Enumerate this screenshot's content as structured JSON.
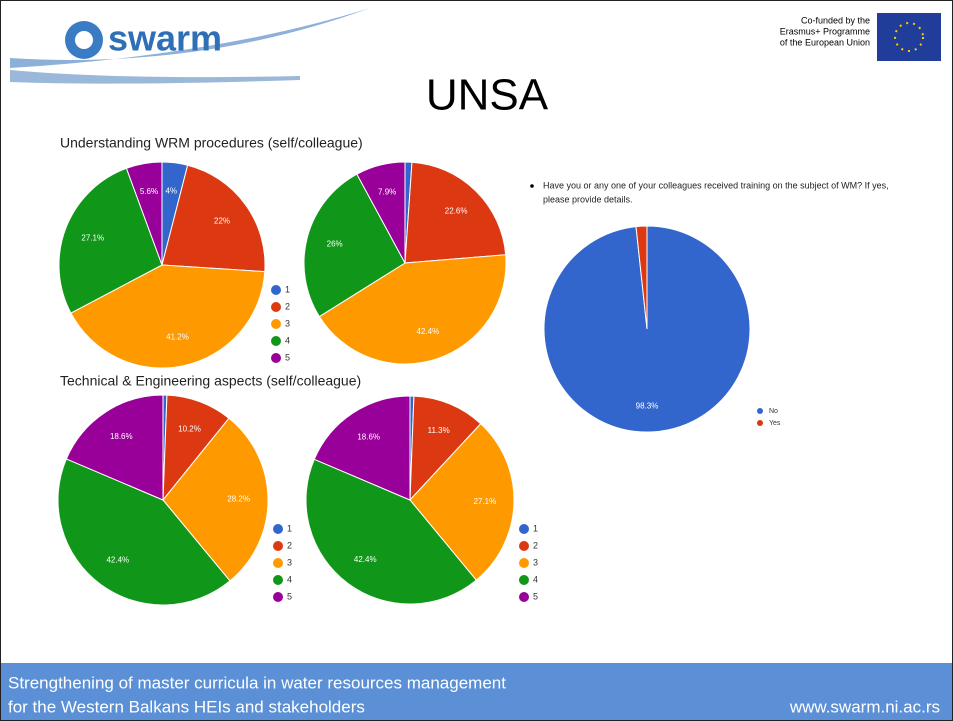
{
  "slide": {
    "logo": "swarm",
    "cofunded": [
      "Co-funded by the",
      "Erasmus+ Programme",
      "of the European Union"
    ],
    "title": "UNSA",
    "footer": [
      "Strengthening of master curricula in water resources  management",
      "for the Western Balkans HEIs and stakeholders"
    ],
    "url": "www.swarm.ni.ac.rs"
  },
  "chart_data": [
    {
      "type": "pie",
      "title": "Understanding WRM procedures (self/colleague)",
      "categories": [
        "1",
        "2",
        "3",
        "4",
        "5"
      ],
      "values": [
        4,
        22,
        41.2,
        27.1,
        5.6
      ],
      "value_labels": [
        "4%",
        "22%",
        "41.2%",
        "27.1%",
        "5.6%"
      ],
      "colors": [
        "#3366cc",
        "#dc3912",
        "#ff9900",
        "#109618",
        "#990099"
      ],
      "legend": true
    },
    {
      "type": "pie",
      "categories": [
        "1",
        "2",
        "3",
        "4",
        "5"
      ],
      "values": [
        1.1,
        22.6,
        42.4,
        26,
        7.9
      ],
      "value_labels": [
        null,
        "22.6%",
        "42.4%",
        "26%",
        "7.9%"
      ],
      "colors": [
        "#3366cc",
        "#dc3912",
        "#ff9900",
        "#109618",
        "#990099"
      ],
      "legend": false
    },
    {
      "type": "pie",
      "title": "Technical & Engineering aspects (self/colleague)",
      "categories": [
        "1",
        "2",
        "3",
        "4",
        "5"
      ],
      "values": [
        0.6,
        10.2,
        28.2,
        42.4,
        18.6
      ],
      "value_labels": [
        null,
        "10.2%",
        "28.2%",
        "42.4%",
        "18.6%"
      ],
      "colors": [
        "#3366cc",
        "#dc3912",
        "#ff9900",
        "#109618",
        "#990099"
      ],
      "legend": true
    },
    {
      "type": "pie",
      "categories": [
        "1",
        "2",
        "3",
        "4",
        "5"
      ],
      "values": [
        0.6,
        11.3,
        27.1,
        42.4,
        18.6
      ],
      "value_labels": [
        null,
        "11.3%",
        "27.1%",
        "42.4%",
        "18.6%"
      ],
      "colors": [
        "#3366cc",
        "#dc3912",
        "#ff9900",
        "#109618",
        "#990099"
      ],
      "legend": true
    },
    {
      "type": "pie",
      "title": "Have you or any one of your colleagues received training on the subject of WM? If yes,",
      "subtitle": "please provide details.",
      "categories": [
        "No",
        "Yes"
      ],
      "values": [
        98.3,
        1.7
      ],
      "value_labels": [
        "98.3%",
        null
      ],
      "colors": [
        "#3366cc",
        "#dc3912"
      ],
      "legend": true
    }
  ]
}
